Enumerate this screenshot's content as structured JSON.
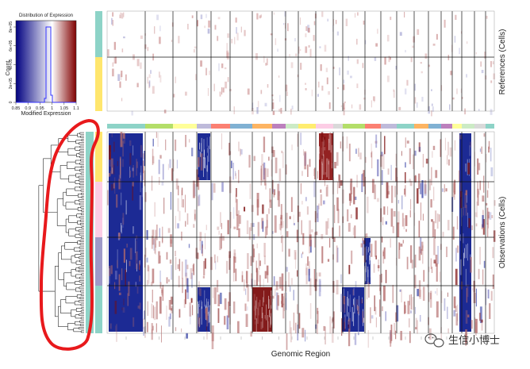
{
  "chart_data": {
    "type": "heatmap",
    "title": "",
    "xlabel": "Genomic Region",
    "ylabel_top": "References (Cells)",
    "ylabel_bottom": "Observations (Cells)",
    "color_scale": {
      "low_color": "#000080",
      "mid_color": "#ffffff",
      "high_color": "#800000",
      "range": [
        0.85,
        1.1
      ],
      "midpoint": 1.0
    },
    "legend": {
      "title": "Distribution of Expression",
      "xlabel": "Modified Expression",
      "ylabel": "Count",
      "x_ticks": [
        "0.85",
        "0.9",
        "0.95",
        "1",
        "1.05",
        "1.1"
      ],
      "y_ticks": [
        "0",
        "2e+05",
        "4e+05",
        "6e+05",
        "8e+05"
      ]
    },
    "chromosome_colors": [
      "#8dd3c7",
      "#b3de69",
      "#ffff99",
      "#bebada",
      "#fb8072",
      "#80b1d3",
      "#fdb462",
      "#bc80bd",
      "#ccebc5",
      "#ffed6f",
      "#fccde5",
      "#d9d9d9",
      "#b3de69",
      "#fb8072",
      "#bebada",
      "#8dd3c7",
      "#fdb462",
      "#80b1d3",
      "#bc80bd",
      "#ffff99",
      "#ccebc5",
      "#d9d9d9"
    ],
    "reference_groups": [
      {
        "color": "#8dd3c7"
      },
      {
        "color": "#ffe66d"
      }
    ],
    "observation_groups": [
      {
        "color": "#ffe66d"
      },
      {
        "color": "#fccde5"
      },
      {
        "color": "#9e9ac8"
      },
      {
        "color": "#8dd3c7"
      }
    ],
    "observation_subclusters": 4
  },
  "watermark": {
    "brand_text": "生信小博士",
    "icon": "wechat-logo-icon"
  },
  "annotation": {
    "shape": "red-outline",
    "color": "#e8191c"
  }
}
